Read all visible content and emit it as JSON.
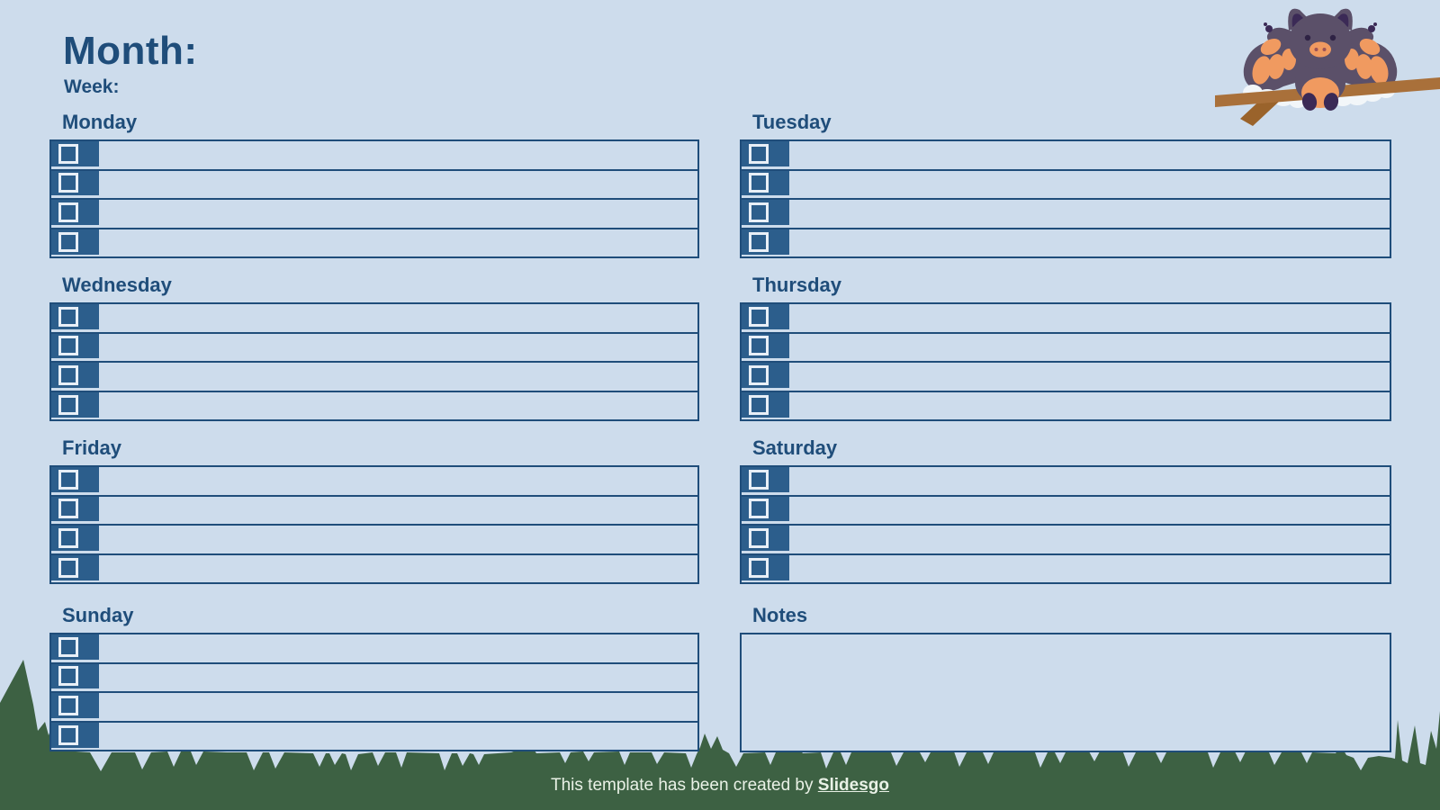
{
  "header": {
    "month_label": "Month:",
    "week_label": "Week:"
  },
  "days": [
    {
      "label": "Monday"
    },
    {
      "label": "Tuesday"
    },
    {
      "label": "Wednesday"
    },
    {
      "label": "Thursday"
    },
    {
      "label": "Friday"
    },
    {
      "label": "Saturday"
    },
    {
      "label": "Sunday"
    }
  ],
  "task_rows_per_day": 4,
  "task_row": {
    "value": "",
    "checked": false
  },
  "notes": {
    "label": "Notes",
    "value": ""
  },
  "footer": {
    "prefix": "This template has been created by ",
    "brand": "Slidesgo"
  },
  "illustration": "bat-on-branch",
  "colors": {
    "background": "#cddcec",
    "ink": "#1f4d7a",
    "checkbox_cell_fill": "#2c5e8c",
    "checkbox_outline": "#e8eff7",
    "grass": "#3d6143",
    "branch": "#a9703a",
    "bat_body": "#5b5069",
    "bat_dark": "#3b2a56",
    "bat_orange": "#f09a60",
    "cloud": "#f2f6f9",
    "footer_text": "#e9f1e6"
  }
}
